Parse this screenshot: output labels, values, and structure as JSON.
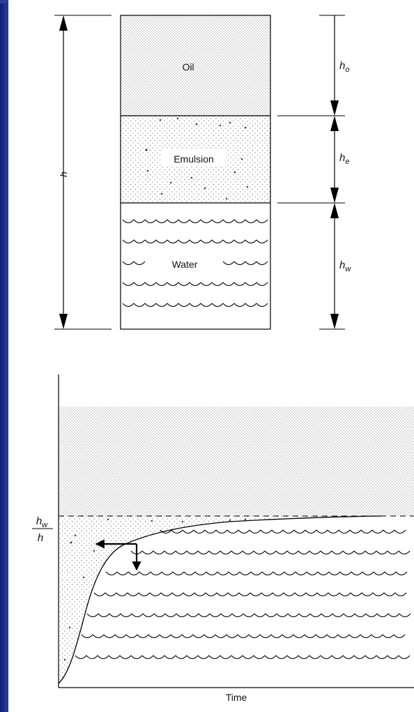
{
  "top_diagram": {
    "layers": {
      "oil": "Oil",
      "emulsion": "Emulsion",
      "water": "Water"
    },
    "dimension_total": "h",
    "dimension_oil": "h",
    "dimension_oil_sub": "o",
    "dimension_emulsion": "h",
    "dimension_emulsion_sub": "e",
    "dimension_water": "h",
    "dimension_water_sub": "w"
  },
  "bottom_chart": {
    "y_label_numerator": "h",
    "y_label_numerator_sub": "w",
    "y_label_denominator": "h",
    "x_label": "Time"
  }
}
